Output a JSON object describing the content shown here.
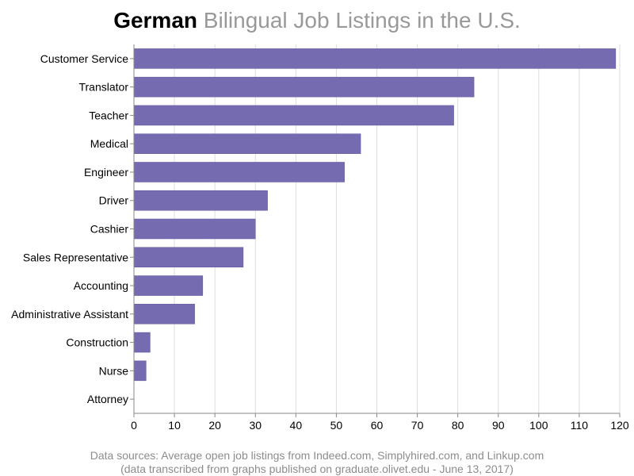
{
  "title": {
    "highlight": "German",
    "rest": "Bilingual Job Listings in the U.S."
  },
  "chart_data": {
    "type": "bar",
    "orientation": "horizontal",
    "categories": [
      "Customer Service",
      "Translator",
      "Teacher",
      "Medical",
      "Engineer",
      "Driver",
      "Cashier",
      "Sales Representative",
      "Accounting",
      "Administrative Assistant",
      "Construction",
      "Nurse",
      "Attorney"
    ],
    "values": [
      119,
      84,
      79,
      56,
      52,
      33,
      30,
      27,
      17,
      15,
      4,
      3,
      0
    ],
    "xlim": [
      0,
      120
    ],
    "xticks": [
      0,
      10,
      20,
      30,
      40,
      50,
      60,
      70,
      80,
      90,
      100,
      110,
      120
    ],
    "grid": "vertical",
    "bar_color": "#756bb1"
  },
  "footer": {
    "line1": "Data sources: Average open job listings from Indeed.com, Simplyhired.com, and Linkup.com",
    "line2": "(data transcribed from graphs published on graduate.olivet.edu - June 13, 2017)"
  }
}
